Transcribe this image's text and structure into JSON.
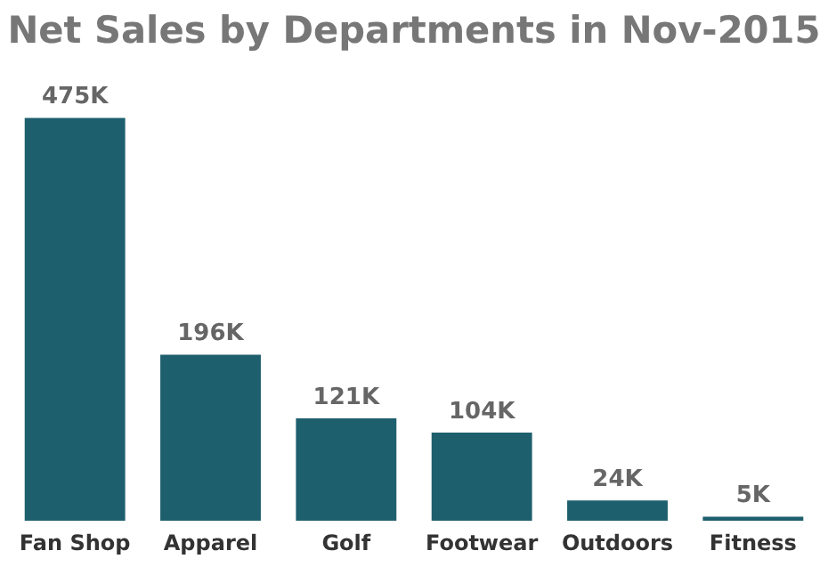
{
  "chart_data": {
    "type": "bar",
    "title": "Net Sales by Departments in Nov-2015",
    "categories": [
      "Fan Shop",
      "Apparel",
      "Golf",
      "Footwear",
      "Outdoors",
      "Fitness"
    ],
    "values": [
      475,
      196,
      121,
      104,
      24,
      5
    ],
    "value_labels": [
      "475K",
      "196K",
      "121K",
      "104K",
      "24K",
      "5K"
    ],
    "color": "#1e5f6e",
    "grid": false,
    "legend": false
  }
}
